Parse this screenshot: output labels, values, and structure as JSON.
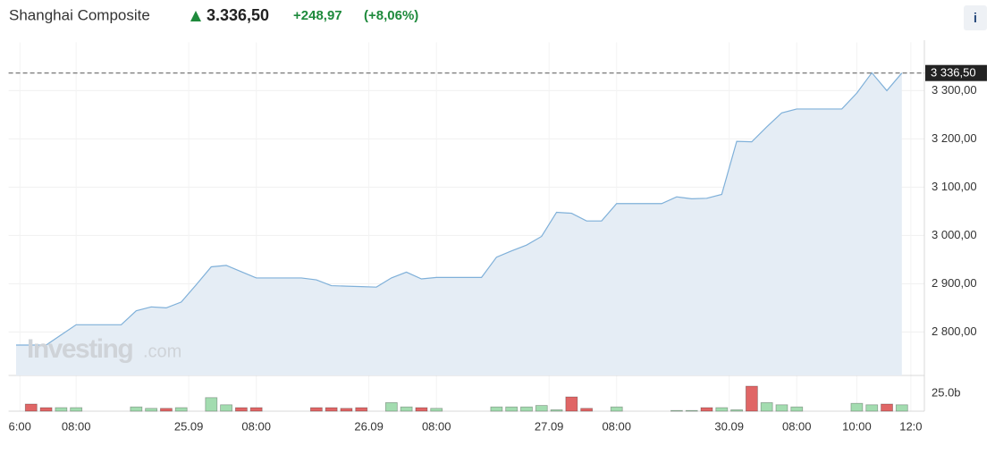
{
  "header": {
    "title": "Shanghai Composite",
    "price": "3.336,50",
    "change": "+248,97",
    "change_pct": "(+8,06%)",
    "info": "i"
  },
  "watermark": [
    "Investing",
    ".com"
  ],
  "chart_data": [
    {
      "type": "area",
      "color": "#7fb0d9",
      "fill": "#e5edf5",
      "grid": true,
      "values": [
        2773,
        2773,
        2773,
        2794,
        2815,
        2815,
        2815,
        2815,
        2844,
        2852,
        2850,
        2862,
        2898,
        2935,
        2938,
        2925,
        2912,
        2912,
        2912,
        2912,
        2908,
        2896,
        2895,
        2894,
        2893,
        2912,
        2924,
        2910,
        2913,
        2913,
        2913,
        2913,
        2955,
        2968,
        2980,
        2998,
        3048,
        3046,
        3030,
        3030,
        3066,
        3066,
        3066,
        3066,
        3080,
        3076,
        3077,
        3085,
        3195,
        3194,
        3225,
        3254,
        3262,
        3262,
        3262,
        3262,
        3295,
        3337,
        3300,
        3336.5
      ],
      "value_labels": [
        null,
        null,
        null,
        null,
        null,
        null,
        null,
        null,
        null,
        null,
        null,
        null,
        null,
        null,
        null,
        null,
        null,
        null,
        null,
        null,
        null,
        null,
        null,
        null,
        null,
        null,
        null,
        null,
        null,
        null,
        null,
        null,
        null,
        null,
        null,
        null,
        null,
        null,
        null,
        null,
        null,
        null,
        null,
        null,
        null,
        null,
        null,
        null,
        null,
        null,
        null,
        null,
        null,
        null,
        null,
        null,
        null,
        null,
        null,
        "3 336,50"
      ],
      "xlim": [
        -0.5,
        60.5
      ],
      "xticks": [
        {
          "value": 0.25,
          "label": "6:00"
        },
        {
          "value": 4,
          "label": "08:00"
        },
        {
          "value": 11.5,
          "label": "25.09"
        },
        {
          "value": 16,
          "label": "08:00"
        },
        {
          "value": 23.5,
          "label": "26.09"
        },
        {
          "value": 28,
          "label": "08:00"
        },
        {
          "value": 35.5,
          "label": "27.09"
        },
        {
          "value": 40,
          "label": "08:00"
        },
        {
          "value": 47.5,
          "label": "30.09"
        },
        {
          "value": 52,
          "label": "08:00"
        },
        {
          "value": 56,
          "label": "10:00"
        },
        {
          "value": 59.6,
          "label": "12:0"
        }
      ],
      "ylim": [
        2710,
        3400
      ],
      "yticks": [
        {
          "value": 2800,
          "label": "2 800,00"
        },
        {
          "value": 2900,
          "label": "2 900,00"
        },
        {
          "value": 3000,
          "label": "3 000,00"
        },
        {
          "value": 3100,
          "label": "3 100,00"
        },
        {
          "value": 3200,
          "label": "3 200,00"
        },
        {
          "value": 3300,
          "label": "3 300,00"
        }
      ]
    },
    {
      "type": "bar",
      "values": [
        null,
        10,
        5,
        5,
        5,
        null,
        null,
        null,
        6,
        4,
        4,
        5,
        null,
        19,
        9,
        5,
        5,
        null,
        null,
        null,
        5,
        5,
        4,
        5,
        null,
        12,
        6,
        5,
        4,
        null,
        null,
        null,
        6,
        6,
        6,
        8,
        2,
        20,
        4,
        null,
        6,
        null,
        null,
        null,
        1,
        1,
        5,
        5,
        2,
        35,
        12,
        9,
        6,
        null,
        null,
        null,
        11,
        9,
        10,
        9
      ],
      "colors": [
        null,
        "#e06666",
        "#e06666",
        "#a3dcb0",
        "#a3dcb0",
        null,
        null,
        null,
        "#a3dcb0",
        "#a3dcb0",
        "#e06666",
        "#a3dcb0",
        null,
        "#a3dcb0",
        "#a3dcb0",
        "#e06666",
        "#e06666",
        null,
        null,
        null,
        "#e06666",
        "#e06666",
        "#e06666",
        "#e06666",
        null,
        "#a3dcb0",
        "#a3dcb0",
        "#e06666",
        "#a3dcb0",
        null,
        null,
        null,
        "#a3dcb0",
        "#a3dcb0",
        "#a3dcb0",
        "#a3dcb0",
        "#a3dcb0",
        "#e06666",
        "#e06666",
        null,
        "#a3dcb0",
        null,
        null,
        null,
        "#a3dcb0",
        "#a3dcb0",
        "#e06666",
        "#a3dcb0",
        "#a3dcb0",
        "#e06666",
        "#a3dcb0",
        "#a3dcb0",
        "#a3dcb0",
        null,
        null,
        null,
        "#a3dcb0",
        "#a3dcb0",
        "#e06666",
        "#a3dcb0"
      ],
      "ylim": [
        0,
        50
      ],
      "yticks": [
        {
          "value": 25,
          "label": "25.0b"
        }
      ]
    }
  ]
}
